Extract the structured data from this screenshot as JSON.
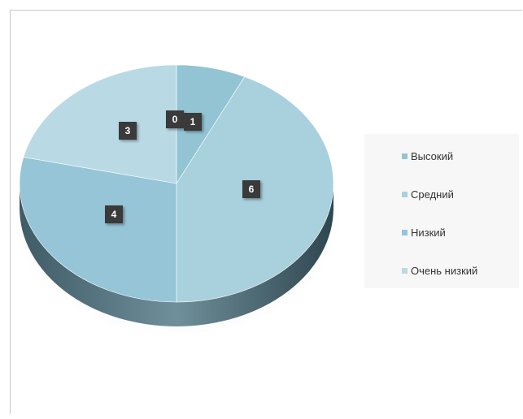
{
  "chart_data": {
    "type": "pie",
    "categories": [
      "Высокий",
      "Средний",
      "Низкий",
      "Очень низкий"
    ],
    "values": [
      1,
      6,
      4,
      3
    ],
    "data_labels": [
      "1",
      "6",
      "4",
      "3"
    ],
    "extra_label": "0",
    "legend_position": "right",
    "colors": [
      "#92C4D4",
      "#A8D0DD",
      "#96C5D8",
      "#B9DAE5"
    ]
  }
}
